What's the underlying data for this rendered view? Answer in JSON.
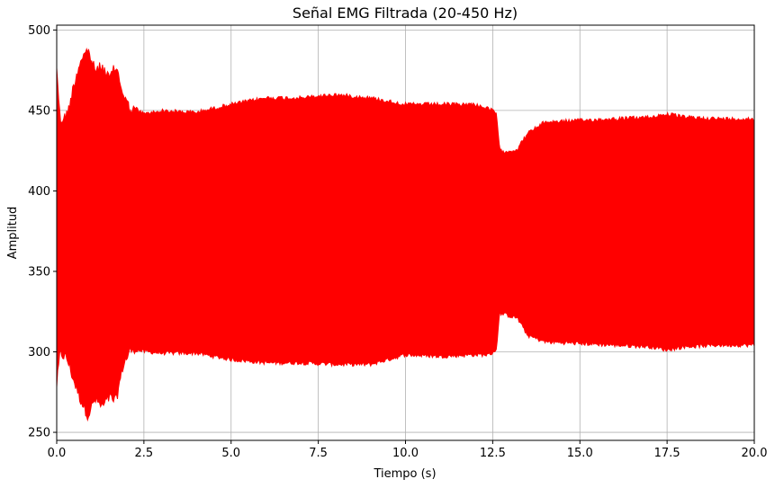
{
  "chart_data": {
    "type": "line",
    "title": "Señal EMG Filtrada (20-450 Hz)",
    "xlabel": "Tiempo (s)",
    "ylabel": "Amplitud",
    "xlim": [
      0,
      20
    ],
    "ylim": [
      245,
      503
    ],
    "xticks": [
      "0.0",
      "2.5",
      "5.0",
      "7.5",
      "10.0",
      "12.5",
      "15.0",
      "17.5",
      "20.0"
    ],
    "yticks": [
      "250",
      "300",
      "350",
      "400",
      "450",
      "500"
    ],
    "grid": true,
    "series": [
      {
        "color": "#ff0000",
        "envelope": {
          "t": [
            0.0,
            0.1,
            0.3,
            0.5,
            0.7,
            0.9,
            1.1,
            1.3,
            1.5,
            1.7,
            1.9,
            2.1,
            2.3,
            2.5,
            3.0,
            4.0,
            5.0,
            6.0,
            7.0,
            8.0,
            9.0,
            10.0,
            11.0,
            12.0,
            12.4,
            12.6,
            12.7,
            13.0,
            13.2,
            13.5,
            14.0,
            15.0,
            16.0,
            17.0,
            17.5,
            18.0,
            19.0,
            20.0
          ],
          "upper": [
            481,
            447,
            451,
            470,
            486,
            491,
            478,
            481,
            473,
            481,
            464,
            454,
            452,
            449,
            451,
            450,
            455,
            459,
            459,
            461,
            459,
            455,
            455,
            455,
            452,
            450,
            426,
            426,
            427,
            437,
            444,
            445,
            446,
            447,
            449,
            447,
            446,
            446
          ],
          "lower": [
            276,
            296,
            292,
            278,
            266,
            257,
            267,
            262,
            268,
            266,
            288,
            297,
            300,
            299,
            298,
            298,
            294,
            292,
            292,
            291,
            291,
            297,
            296,
            297,
            297,
            300,
            323,
            321,
            320,
            309,
            305,
            304,
            303,
            302,
            300,
            302,
            303,
            303
          ]
        }
      }
    ]
  }
}
